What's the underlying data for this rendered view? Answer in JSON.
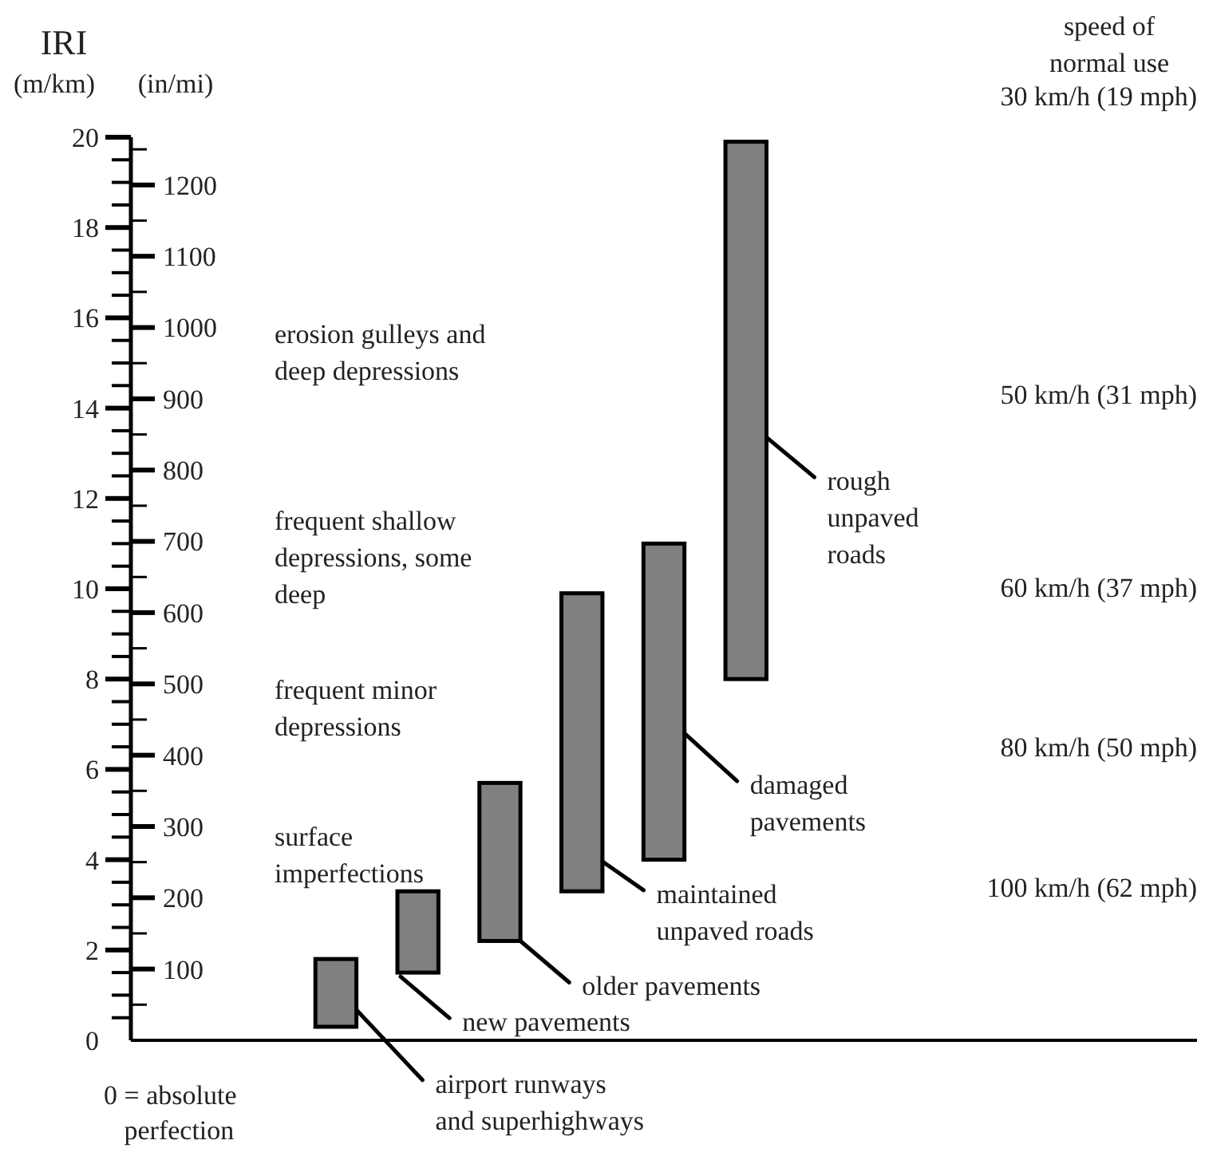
{
  "chart_data": {
    "type": "bar",
    "title": "IRI",
    "ylabel": "(m/km)",
    "y2label": "(in/mi)",
    "categories": [
      null,
      null,
      null,
      null,
      null,
      null,
      null,
      null,
      null,
      null,
      null,
      null,
      null
    ],
    "values": [
      null,
      null,
      1.5,
      1.8,
      3.5,
      6.6,
      7,
      11.9,
      null,
      null,
      null,
      null,
      null
    ],
    "base": [
      null,
      null,
      0.3,
      1.5,
      2.2,
      3.3,
      4,
      8,
      null,
      null,
      null,
      null,
      null
    ],
    "color": "#808080",
    "ylim": [
      0,
      20
    ],
    "yticks": [
      0,
      {
        "value": 0.5,
        "label": null
      },
      {
        "value": 1,
        "label": null
      },
      {
        "value": 1.5,
        "label": null
      },
      2,
      {
        "value": 2.5,
        "label": null
      },
      {
        "value": 3,
        "label": null
      },
      {
        "value": 3.5,
        "label": null
      },
      4,
      {
        "value": 4.5,
        "label": null
      },
      {
        "value": 5,
        "label": null
      },
      {
        "value": 5.5,
        "label": null
      },
      6,
      {
        "value": 6.5,
        "label": null
      },
      {
        "value": 7,
        "label": null
      },
      {
        "value": 7.5,
        "label": null
      },
      8,
      {
        "value": 8.5,
        "label": null
      },
      {
        "value": 9,
        "label": null
      },
      {
        "value": 9.5,
        "label": null
      },
      10,
      {
        "value": 10.5,
        "label": null
      },
      {
        "value": 11,
        "label": null
      },
      {
        "value": 11.5,
        "label": null
      },
      12,
      {
        "value": 12.5,
        "label": null
      },
      {
        "value": 13,
        "label": null
      },
      {
        "value": 13.5,
        "label": null
      },
      14,
      {
        "value": 14.5,
        "label": null
      },
      {
        "value": 15,
        "label": null
      },
      {
        "value": 15.5,
        "label": null
      },
      16,
      {
        "value": 16.5,
        "label": null
      },
      {
        "value": 17,
        "label": null
      },
      {
        "value": 17.5,
        "label": null
      },
      18,
      {
        "value": 18.5,
        "label": null
      },
      {
        "value": 19,
        "label": null
      },
      {
        "value": 19.5,
        "label": null
      },
      20
    ],
    "y2lim": [
      0,
      1267
    ],
    "y2ticks": [
      {
        "value": 50,
        "label": null
      },
      100,
      {
        "value": 150,
        "label": null
      },
      200,
      {
        "value": 250,
        "label": null
      },
      300,
      {
        "value": 350,
        "label": null
      },
      400,
      {
        "value": 450,
        "label": null
      },
      500,
      {
        "value": 550,
        "label": null
      },
      600,
      {
        "value": 650,
        "label": null
      },
      700,
      {
        "value": 750,
        "label": null
      },
      800,
      {
        "value": 850,
        "label": null
      },
      900,
      {
        "value": 950,
        "label": null
      },
      1000,
      {
        "value": 1050,
        "label": null
      },
      1100,
      {
        "value": 1150,
        "label": null
      },
      1200,
      {
        "value": 1250,
        "label": null
      }
    ],
    "annotations": [
      "airport runways\nand superhighways",
      "new pavements",
      "older pavements",
      "maintained\nunpaved roads",
      "damaged\npavements",
      "rough\nunpaved\nroads",
      "erosion gulleys and\ndeep depressions",
      "frequent shallow\ndepressions, some\ndeep",
      "frequent minor\ndepressions",
      "surface\nimperfections",
      "speed of\nnormal use",
      "30 km/h (19 mph)",
      "50 km/h (31 mph)",
      "60 km/h (37 mph)",
      "80 km/h (50 mph)",
      "100 km/h (62 mph)",
      "0 = absolute\n   perfection"
    ]
  }
}
